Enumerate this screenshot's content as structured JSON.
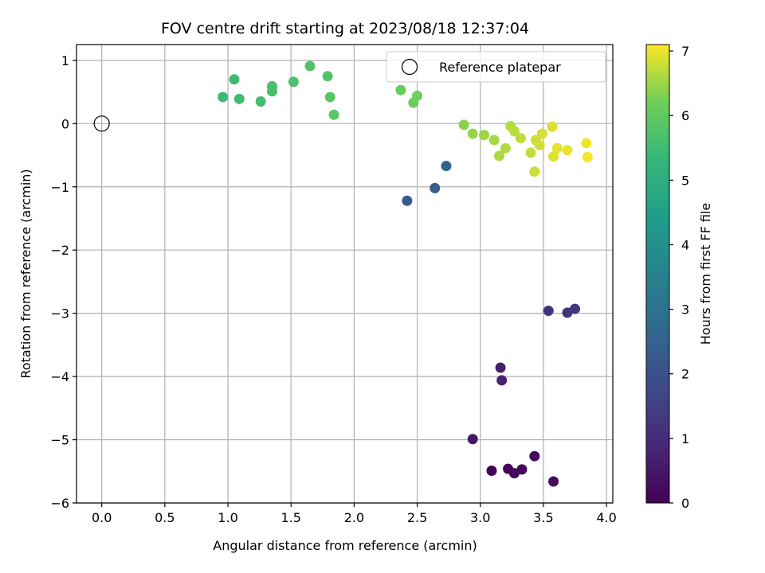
{
  "chart_data": {
    "type": "scatter",
    "title": "FOV centre drift starting at 2023/08/18 12:37:04",
    "xlabel": "Angular distance from reference (arcmin)",
    "ylabel": "Rotation from reference (arcmin)",
    "xlim": [
      -0.2,
      4.05
    ],
    "ylim": [
      -6,
      1.25
    ],
    "xticks": [
      0.0,
      0.5,
      1.0,
      1.5,
      2.0,
      2.5,
      3.0,
      3.5,
      4.0
    ],
    "xtick_labels": [
      "0.0",
      "0.5",
      "1.0",
      "1.5",
      "2.0",
      "2.5",
      "3.0",
      "3.5",
      "4.0"
    ],
    "yticks": [
      1,
      0,
      -1,
      -2,
      -3,
      -4,
      -5,
      -6
    ],
    "ytick_labels": [
      "1",
      "0",
      "−1",
      "−2",
      "−3",
      "−4",
      "−5",
      "−6"
    ],
    "grid": true,
    "legend": {
      "placement": "upper right",
      "entries": [
        "Reference platepar"
      ]
    },
    "reference_point": {
      "x": 0.0,
      "y": 0.0
    },
    "colorbar": {
      "label": "Hours from first FF file",
      "range": [
        0,
        7.1
      ],
      "ticks": [
        0,
        1,
        2,
        3,
        4,
        5,
        6,
        7
      ],
      "tick_labels": [
        "0",
        "1",
        "2",
        "3",
        "4",
        "5",
        "6",
        "7"
      ],
      "colormap": "viridis"
    },
    "points": [
      {
        "x": 3.09,
        "y": -5.49,
        "t": 0.05
      },
      {
        "x": 3.22,
        "y": -5.46,
        "t": 0.1
      },
      {
        "x": 3.27,
        "y": -5.53,
        "t": 0.12
      },
      {
        "x": 3.33,
        "y": -5.47,
        "t": 0.15
      },
      {
        "x": 3.43,
        "y": -5.26,
        "t": 0.2
      },
      {
        "x": 3.58,
        "y": -5.66,
        "t": 0.25
      },
      {
        "x": 2.94,
        "y": -4.99,
        "t": 0.5
      },
      {
        "x": 3.16,
        "y": -3.86,
        "t": 0.7
      },
      {
        "x": 3.17,
        "y": -4.06,
        "t": 0.75
      },
      {
        "x": 3.54,
        "y": -2.96,
        "t": 1.15
      },
      {
        "x": 3.69,
        "y": -2.99,
        "t": 1.2
      },
      {
        "x": 3.75,
        "y": -2.93,
        "t": 1.25
      },
      {
        "x": 2.42,
        "y": -1.22,
        "t": 2.3
      },
      {
        "x": 2.64,
        "y": -1.02,
        "t": 2.4
      },
      {
        "x": 2.73,
        "y": -0.67,
        "t": 2.5
      },
      {
        "x": 0.96,
        "y": 0.42,
        "t": 5.4
      },
      {
        "x": 1.05,
        "y": 0.7,
        "t": 5.45
      },
      {
        "x": 1.09,
        "y": 0.39,
        "t": 5.5
      },
      {
        "x": 1.26,
        "y": 0.35,
        "t": 5.55
      },
      {
        "x": 1.35,
        "y": 0.51,
        "t": 5.6
      },
      {
        "x": 1.35,
        "y": 0.59,
        "t": 5.65
      },
      {
        "x": 1.52,
        "y": 0.66,
        "t": 5.7
      },
      {
        "x": 1.65,
        "y": 0.91,
        "t": 5.75
      },
      {
        "x": 1.79,
        "y": 0.75,
        "t": 5.8
      },
      {
        "x": 1.81,
        "y": 0.42,
        "t": 5.85
      },
      {
        "x": 1.84,
        "y": 0.14,
        "t": 5.9
      },
      {
        "x": 2.37,
        "y": 0.53,
        "t": 6.1
      },
      {
        "x": 2.47,
        "y": 0.33,
        "t": 6.15
      },
      {
        "x": 2.5,
        "y": 0.44,
        "t": 6.2
      },
      {
        "x": 2.87,
        "y": -0.02,
        "t": 6.4
      },
      {
        "x": 2.94,
        "y": -0.16,
        "t": 6.45
      },
      {
        "x": 3.03,
        "y": -0.18,
        "t": 6.5
      },
      {
        "x": 3.11,
        "y": -0.26,
        "t": 6.55
      },
      {
        "x": 3.15,
        "y": -0.51,
        "t": 6.6
      },
      {
        "x": 3.2,
        "y": -0.39,
        "t": 6.62
      },
      {
        "x": 3.24,
        "y": -0.04,
        "t": 6.65
      },
      {
        "x": 3.27,
        "y": -0.12,
        "t": 6.68
      },
      {
        "x": 3.32,
        "y": -0.23,
        "t": 6.7
      },
      {
        "x": 3.4,
        "y": -0.46,
        "t": 6.75
      },
      {
        "x": 3.43,
        "y": -0.76,
        "t": 6.78
      },
      {
        "x": 3.44,
        "y": -0.26,
        "t": 6.8
      },
      {
        "x": 3.47,
        "y": -0.34,
        "t": 6.82
      },
      {
        "x": 3.49,
        "y": -0.16,
        "t": 6.85
      },
      {
        "x": 3.57,
        "y": -0.05,
        "t": 6.88
      },
      {
        "x": 3.58,
        "y": -0.52,
        "t": 6.9
      },
      {
        "x": 3.61,
        "y": -0.39,
        "t": 6.93
      },
      {
        "x": 3.69,
        "y": -0.42,
        "t": 6.96
      },
      {
        "x": 3.84,
        "y": -0.31,
        "t": 7.0
      },
      {
        "x": 3.85,
        "y": -0.53,
        "t": 7.05
      }
    ]
  }
}
